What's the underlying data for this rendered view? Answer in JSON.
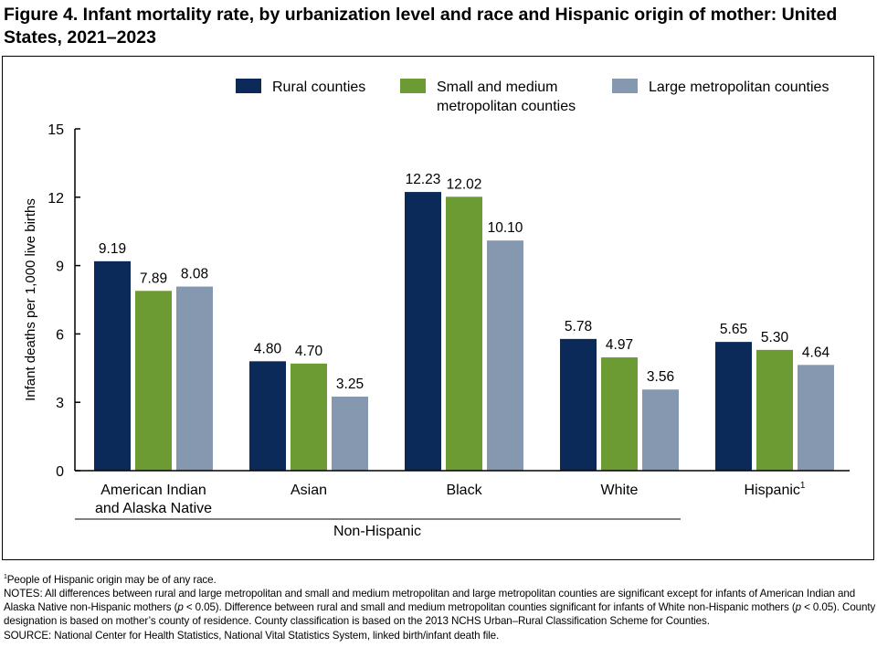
{
  "title": "Figure 4. Infant mortality rate, by urbanization level and race and Hispanic origin of mother: United States, 2021–2023",
  "chart_data": {
    "type": "bar",
    "title": "Figure 4. Infant mortality rate, by urbanization level and race and Hispanic origin of mother: United States, 2021–2023",
    "ylabel": "Infant deaths per 1,000 live births",
    "xlabel": "",
    "ylim": [
      0,
      15
    ],
    "yticks": [
      "0",
      "3",
      "6",
      "9",
      "12",
      "15"
    ],
    "categories": [
      "American Indian and Alaska Native",
      "Asian",
      "Black",
      "White",
      "Hispanic"
    ],
    "category_lines": [
      [
        "American Indian",
        "and Alaska Native"
      ],
      [
        "Asian"
      ],
      [
        "Black"
      ],
      [
        "White"
      ],
      [
        "Hispanic"
      ]
    ],
    "category_superscripts": [
      "",
      "",
      "",
      "",
      "1"
    ],
    "group_label": "Non-Hispanic",
    "legend_position": "top-right",
    "series": [
      {
        "name": "Rural counties",
        "name_lines": [
          "Rural counties"
        ],
        "color": "#0b2a5a",
        "values": [
          9.19,
          4.8,
          12.23,
          5.78,
          5.65
        ],
        "labels": [
          "9.19",
          "4.80",
          "12.23",
          "5.78",
          "5.65"
        ]
      },
      {
        "name": "Small and medium metropolitan counties",
        "name_lines": [
          "Small and medium",
          "metropolitan counties"
        ],
        "color": "#6b9b32",
        "values": [
          7.89,
          4.7,
          12.02,
          4.97,
          5.3
        ],
        "labels": [
          "7.89",
          "4.70",
          "12.02",
          "4.97",
          "5.30"
        ]
      },
      {
        "name": "Large metropolitan counties",
        "name_lines": [
          "Large metropolitan counties"
        ],
        "color": "#8598b0",
        "values": [
          8.08,
          3.25,
          10.1,
          3.56,
          4.64
        ],
        "labels": [
          "8.08",
          "3.25",
          "10.10",
          "3.56",
          "4.64"
        ]
      }
    ]
  },
  "footnotes": {
    "sup": "1",
    "hispanic_note": "People of Hispanic origin may be of any race.",
    "notes_1": "NOTES: All differences between rural and large metropolitan and small and medium metropolitan and large metropolitan counties are significant except for infants of American Indian and Alaska Native non-Hispanic mothers (",
    "p": "p",
    "notes_2": " < 0.05). Difference between rural and small and medium metropolitan counties significant for infants of White non-Hispanic mothers (",
    "notes_3": " < 0.05). County designation is based on mother’s county of residence. County classification is based on the 2013 NCHS Urban–Rural Classification Scheme for Counties.",
    "source": "SOURCE: National Center for Health Statistics, National Vital Statistics System, linked birth/infant death file."
  }
}
